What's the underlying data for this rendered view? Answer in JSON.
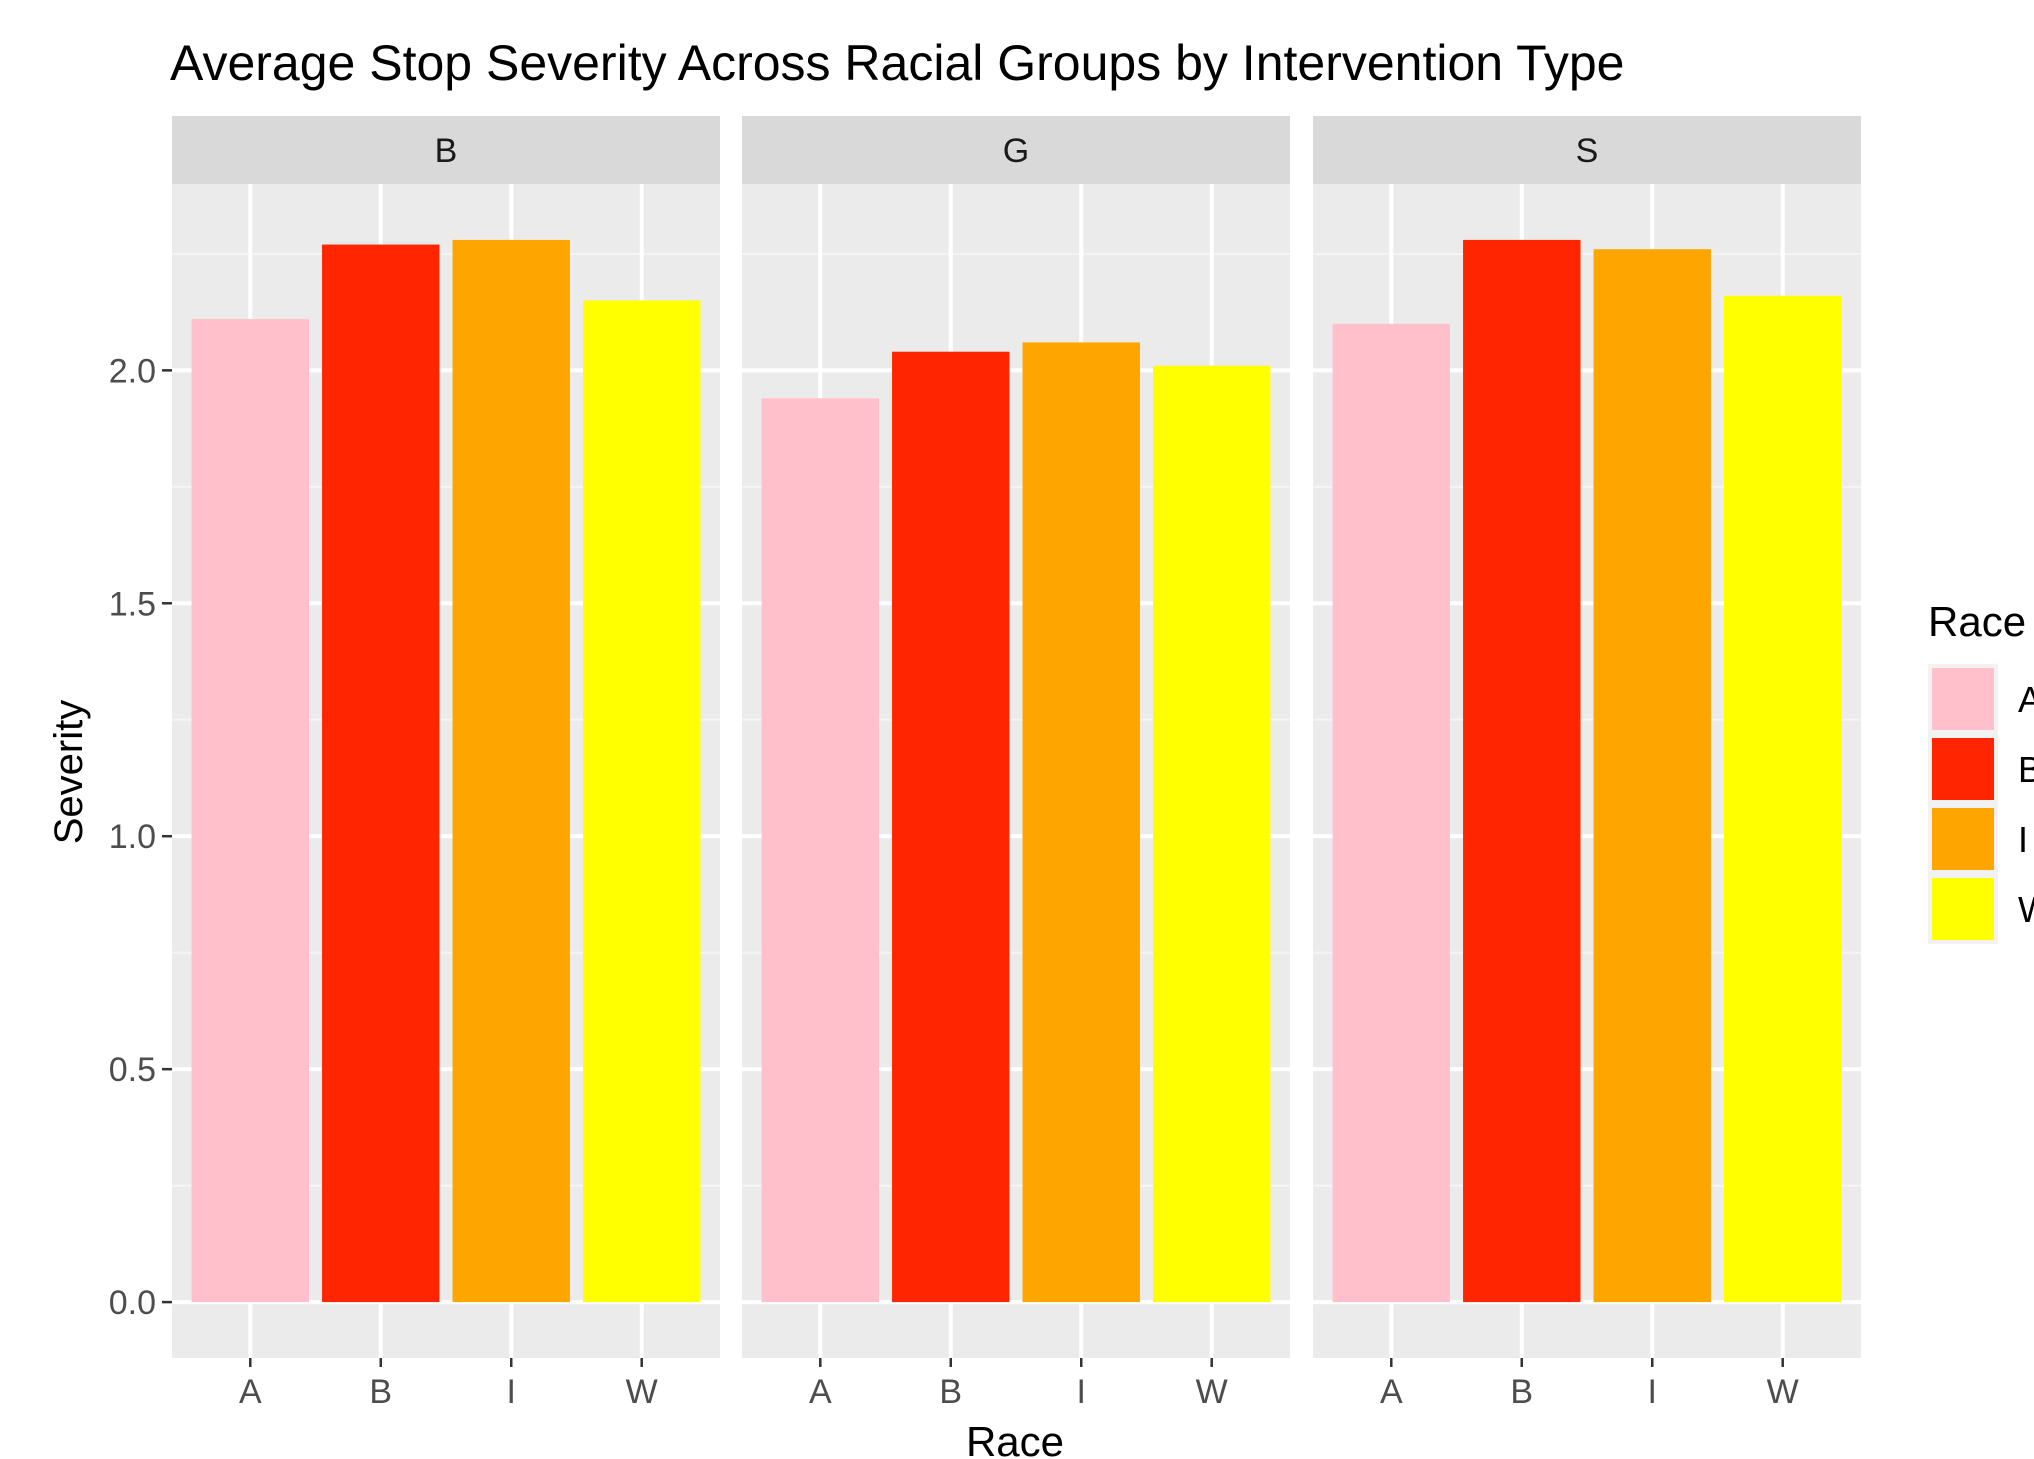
{
  "chart_data": {
    "type": "bar",
    "title": "Average Stop Severity Across Racial Groups by Intervention Type",
    "xlabel": "Race",
    "ylabel": "Severity",
    "ylim": [
      -0.12,
      2.4
    ],
    "yticks": [
      0.0,
      0.5,
      1.0,
      1.5,
      2.0
    ],
    "ytick_labels": [
      "0.0",
      "0.5",
      "1.0",
      "1.5",
      "2.0"
    ],
    "categories": [
      "A",
      "B",
      "I",
      "W"
    ],
    "facets": [
      {
        "name": "B",
        "values": [
          2.11,
          2.27,
          2.28,
          2.15
        ]
      },
      {
        "name": "G",
        "values": [
          1.94,
          2.04,
          2.06,
          2.01
        ]
      },
      {
        "name": "S",
        "values": [
          2.1,
          2.28,
          2.26,
          2.16
        ]
      }
    ],
    "legend": {
      "title": "Race",
      "placement": "right",
      "entries": [
        "A",
        "B",
        "I",
        "W"
      ]
    },
    "colors": {
      "A": "#FFC0CB",
      "B": "#FF2500",
      "I": "#FFA500",
      "W": "#FFFF00"
    },
    "grid": true
  }
}
